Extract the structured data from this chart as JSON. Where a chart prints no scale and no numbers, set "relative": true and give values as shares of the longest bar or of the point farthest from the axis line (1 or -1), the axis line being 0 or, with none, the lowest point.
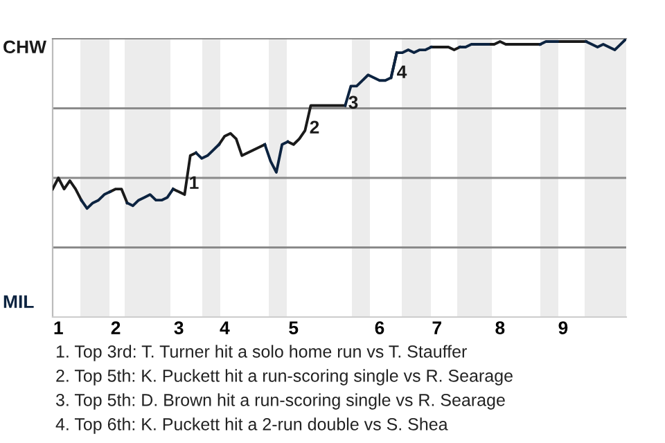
{
  "chart_data": {
    "type": "line",
    "relative": true,
    "categories": [
      null,
      "1",
      null,
      null,
      null,
      null,
      null,
      null,
      null,
      null,
      null,
      "2",
      null,
      null,
      null,
      null,
      null,
      null,
      null,
      null,
      null,
      null,
      "3",
      null,
      null,
      null,
      null,
      null,
      null,
      null,
      "4",
      null,
      null,
      null,
      null,
      null,
      null,
      null,
      null,
      null,
      null,
      null,
      "5",
      null,
      null,
      null,
      null,
      null,
      null,
      null,
      null,
      null,
      null,
      null,
      null,
      null,
      null,
      "6",
      null,
      null,
      null,
      null,
      null,
      null,
      null,
      null,
      null,
      "7",
      null,
      null,
      null,
      null,
      null,
      null,
      null,
      null,
      null,
      null,
      "8",
      null,
      null,
      null,
      null,
      null,
      null,
      null,
      null,
      null,
      null,
      "9",
      null,
      null,
      null,
      null,
      null,
      null,
      null,
      null,
      null,
      null,
      null
    ],
    "grid": false,
    "legend": false,
    "marker": "none",
    "line_style": "solid",
    "series": [
      {
        "color": "#1a1a1a",
        "values": [
          0.46,
          0.5,
          0.46,
          0.49,
          0.46,
          0.42,
          null,
          null,
          null,
          null,
          0.45,
          0.46,
          0.46,
          0.41,
          null,
          null,
          null,
          null,
          null,
          null,
          null,
          0.46,
          0.45,
          0.44,
          0.58,
          0.59,
          null,
          null,
          null,
          0.62,
          0.65,
          0.66,
          0.64,
          0.58,
          0.59,
          0.6,
          0.61,
          0.62,
          null,
          null,
          null,
          0.63,
          0.62,
          0.64,
          0.67,
          0.76,
          0.76,
          0.76,
          0.76,
          0.76,
          0.76,
          0.76,
          null,
          null,
          null,
          null,
          null,
          null,
          null,
          0.86,
          0.95,
          null,
          null,
          null,
          null,
          null,
          0.97,
          0.97,
          0.97,
          0.97,
          0.96,
          0.97,
          null,
          null,
          null,
          null,
          0.98,
          0.98,
          0.99,
          0.98,
          0.98,
          0.98,
          0.98,
          0.98,
          0.98,
          0.98,
          null,
          null,
          0.99,
          0.99,
          0.99,
          0.99,
          0.99,
          0.99,
          null,
          null,
          null,
          null,
          null,
          null,
          null
        ]
      },
      {
        "color": "#0c2340",
        "values": [
          null,
          null,
          null,
          null,
          null,
          0.42,
          0.39,
          0.41,
          0.42,
          0.44,
          0.45,
          null,
          null,
          0.41,
          0.4,
          0.42,
          0.43,
          0.44,
          0.42,
          0.42,
          0.43,
          0.46,
          null,
          null,
          null,
          0.59,
          0.57,
          0.58,
          0.6,
          0.62,
          null,
          null,
          null,
          null,
          null,
          null,
          null,
          0.62,
          0.56,
          0.52,
          0.62,
          0.63,
          null,
          null,
          null,
          null,
          null,
          null,
          null,
          null,
          null,
          0.76,
          0.83,
          0.83,
          0.85,
          0.87,
          0.86,
          0.85,
          0.85,
          0.86,
          0.95,
          0.95,
          0.96,
          0.95,
          0.96,
          0.96,
          0.97,
          null,
          null,
          null,
          null,
          0.97,
          0.97,
          0.98,
          0.98,
          0.98,
          0.98,
          null,
          null,
          null,
          null,
          null,
          null,
          null,
          null,
          0.98,
          0.99,
          0.99,
          0.99,
          null,
          null,
          null,
          null,
          0.99,
          0.98,
          0.97,
          0.98,
          0.97,
          0.96,
          0.98,
          1.0
        ]
      }
    ],
    "ref_lines": [
      {
        "axis": "y",
        "value": 0.25,
        "color": "#8a8a8a"
      },
      {
        "axis": "y",
        "value": 0.5,
        "color": "#8a8a8a"
      },
      {
        "axis": "y",
        "value": 0.75,
        "color": "#8a8a8a"
      }
    ],
    "annotations": [
      "CHW",
      "MIL",
      "1",
      "2",
      "3",
      "4",
      "1. Top 3rd: T. Turner hit a solo home run vs T. Stauffer",
      "2. Top 5th: K. Puckett hit a run-scoring single vs R. Searage",
      "3. Top 5th: D. Brown hit a run-scoring single vs R. Searage",
      "4. Top 6th: K. Puckett hit a 2-run double vs S. Shea"
    ]
  }
}
